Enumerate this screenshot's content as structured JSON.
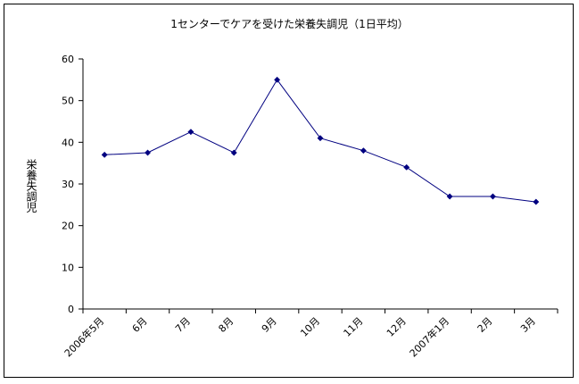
{
  "chart_data": {
    "type": "line",
    "title": "1センターでケアを受けた栄養失調児（1日平均）",
    "xlabel": "",
    "ylabel": "栄養失調児",
    "categories": [
      "2006年5月",
      "6月",
      "7月",
      "8月",
      "9月",
      "10月",
      "11月",
      "12月",
      "2007年1月",
      "2月",
      "3月"
    ],
    "series": [
      {
        "name": "",
        "values": [
          37,
          37.5,
          42.5,
          37.5,
          55,
          41,
          38,
          34,
          27,
          27,
          25.7
        ],
        "color": "#000080"
      }
    ],
    "ylim": [
      0,
      60
    ],
    "yticks": [
      0,
      10,
      20,
      30,
      40,
      50,
      60
    ],
    "grid": false,
    "legend": "none"
  }
}
